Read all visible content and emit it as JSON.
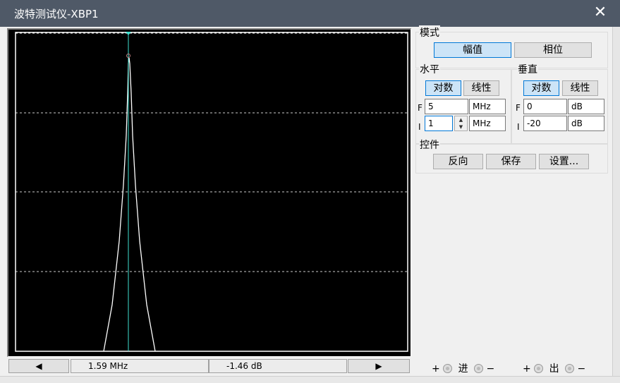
{
  "window": {
    "title": "波特测试仪-XBP1",
    "close_glyph": "✕"
  },
  "plot": {
    "background": "#000000",
    "curve_color": "#ffffff",
    "cursor_color": "#40e0d0",
    "grid_color": "#ffffff"
  },
  "status": {
    "left_arrow": "◀",
    "frequency": "1.59 MHz",
    "magnitude": "-1.46 dB",
    "right_arrow": "▶"
  },
  "mode": {
    "label": "模式",
    "magnitude_btn": "幅值",
    "phase_btn": "相位",
    "selected": "幅值"
  },
  "horizontal": {
    "label": "水平",
    "log_btn": "对数",
    "linear_btn": "线性",
    "selected": "对数",
    "f_label": "F",
    "f_value": "5",
    "f_unit": "MHz",
    "i_label": "I",
    "i_value": "1",
    "i_unit": "MHz"
  },
  "vertical": {
    "label": "垂直",
    "log_btn": "对数",
    "linear_btn": "线性",
    "selected": "对数",
    "f_label": "F",
    "f_value": "0",
    "f_unit": "dB",
    "i_label": "I",
    "i_value": "-20",
    "i_unit": "dB"
  },
  "controls": {
    "label": "控件",
    "reverse_btn": "反向",
    "save_btn": "保存",
    "settings_btn": "设置..."
  },
  "terminals": {
    "in_plus": "+",
    "in_label": "进",
    "in_minus": "−",
    "out_plus": "+",
    "out_label": "出",
    "out_minus": "−"
  }
}
